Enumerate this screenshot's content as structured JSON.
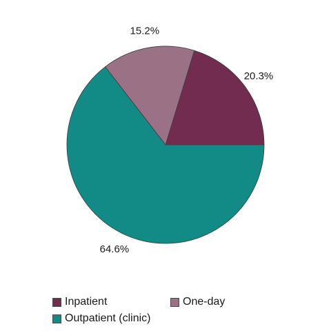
{
  "chart_data": {
    "type": "pie",
    "title": "",
    "start_angle_deg": 0,
    "direction": "counterclockwise",
    "legend_position": "bottom",
    "slices": [
      {
        "name": "Inpatient",
        "value": 20.3,
        "label": "20.3%",
        "color": "#722c50"
      },
      {
        "name": "One-day",
        "value": 15.2,
        "label": "15.2%",
        "color": "#9b7285"
      },
      {
        "name": "Outpatient (clinic)",
        "value": 64.6,
        "label": "64.6%",
        "color": "#128a85"
      }
    ]
  }
}
